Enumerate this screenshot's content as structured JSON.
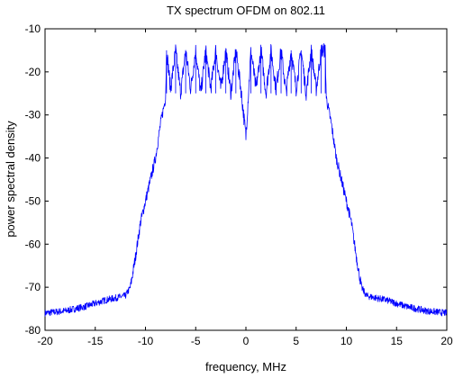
{
  "chart_data": {
    "type": "line",
    "title": "TX spectrum OFDM  on 802.11",
    "xlabel": "frequency, MHz",
    "ylabel": "power spectral density",
    "xlim": [
      -20,
      20
    ],
    "ylim": [
      -80,
      -10
    ],
    "xticks": [
      -20,
      -15,
      -10,
      -5,
      0,
      5,
      10,
      15,
      20
    ],
    "yticks": [
      -10,
      -20,
      -30,
      -40,
      -50,
      -60,
      -70,
      -80
    ],
    "grid": false,
    "series": [
      {
        "color": "#0000ff",
        "x": [
          -20,
          -18,
          -16,
          -14,
          -12,
          -11.5,
          -11,
          -10.5,
          -10,
          -9.5,
          -9,
          -8.5,
          -8,
          -7.9,
          -7.5,
          -7,
          -6.5,
          -6,
          -5.5,
          -5,
          -4.5,
          -4,
          -3.5,
          -3,
          -2.5,
          -2,
          -1.5,
          -1,
          -0.5,
          0,
          0.5,
          1,
          1.5,
          2,
          2.5,
          3,
          3.5,
          4,
          4.5,
          5,
          5.5,
          6,
          6.5,
          7,
          7.5,
          7.9,
          8,
          8.5,
          9,
          9.5,
          10,
          10.5,
          11,
          11.5,
          12,
          14,
          16,
          18,
          20
        ],
        "y": [
          -76,
          -75.5,
          -74.5,
          -73,
          -72,
          -70,
          -63,
          -55,
          -50,
          -45,
          -40,
          -32,
          -26,
          -15,
          -24,
          -15,
          -25,
          -15,
          -24,
          -15,
          -25,
          -15,
          -24,
          -15,
          -24,
          -15,
          -25,
          -15,
          -24,
          -35,
          -15,
          -24,
          -15,
          -25,
          -15,
          -24,
          -15,
          -25,
          -15,
          -24,
          -15,
          -25,
          -15,
          -24,
          -15,
          -15,
          -26,
          -32,
          -40,
          -45,
          -50,
          -55,
          -63,
          -70,
          -72,
          -73,
          -74.5,
          -75.5,
          -76
        ]
      }
    ]
  }
}
